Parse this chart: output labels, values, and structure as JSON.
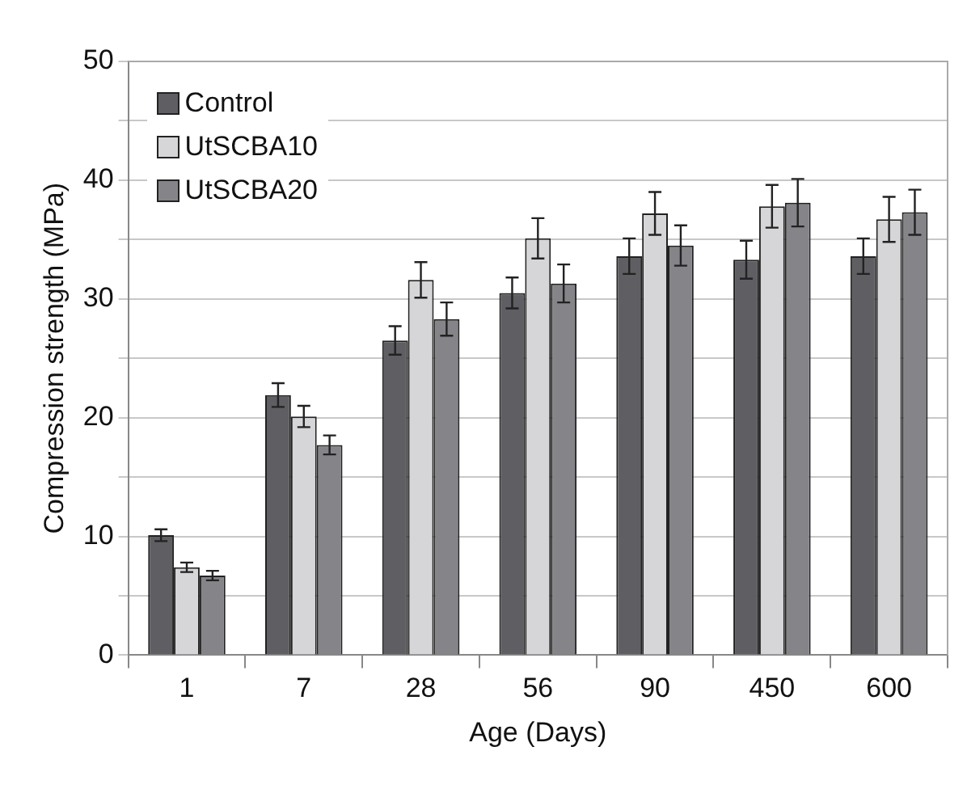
{
  "chart_data": {
    "type": "bar",
    "xlabel": "Age (Days)",
    "ylabel": "Compression strength (MPa)",
    "categories": [
      "1",
      "7",
      "28",
      "56",
      "90",
      "450",
      "600"
    ],
    "series": [
      {
        "name": "Control",
        "color": "#5f5f63",
        "values": [
          10.1,
          21.9,
          26.5,
          30.5,
          33.6,
          33.3,
          33.6
        ],
        "errors": [
          0.5,
          1.0,
          1.2,
          1.3,
          1.5,
          1.6,
          1.5
        ]
      },
      {
        "name": "UtSCBA10",
        "color": "#d6d6d8",
        "values": [
          7.4,
          20.1,
          31.6,
          35.1,
          37.2,
          37.8,
          36.7
        ],
        "errors": [
          0.4,
          0.9,
          1.5,
          1.7,
          1.8,
          1.8,
          1.9
        ]
      },
      {
        "name": "UtSCBA20",
        "color": "#858589",
        "values": [
          6.7,
          17.7,
          28.3,
          31.3,
          34.5,
          38.1,
          37.3
        ],
        "errors": [
          0.4,
          0.8,
          1.4,
          1.6,
          1.7,
          2.0,
          1.9
        ]
      }
    ],
    "ylim": [
      0,
      50
    ],
    "yticks": [
      0,
      {
        "value": 5,
        "label": null
      },
      10,
      {
        "value": 15,
        "label": null
      },
      20,
      {
        "value": 25,
        "label": null
      },
      30,
      {
        "value": 35,
        "label": null
      },
      40,
      {
        "value": 45,
        "label": null
      },
      50
    ],
    "grid": "y",
    "legend": "top left"
  }
}
